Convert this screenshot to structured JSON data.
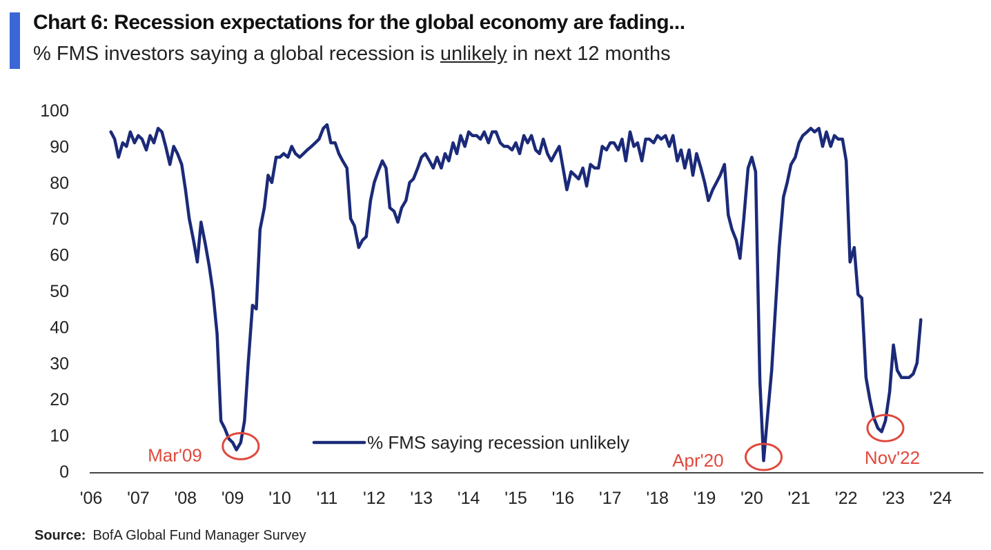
{
  "header": {
    "title": "Chart 6: Recession expectations for the global economy are fading...",
    "subtitle_pre": "% FMS investors saying a global recession is ",
    "subtitle_underlined": "unlikely",
    "subtitle_post": " in next 12 months"
  },
  "source": {
    "label": "Source:",
    "text": "BofA Global Fund Manager Survey"
  },
  "colors": {
    "line": "#1b2a78",
    "annotation": "#e0483c",
    "accent": "#3b67d6",
    "text": "#222222"
  },
  "chart_data": {
    "type": "line",
    "title": "Chart 6: Recession expectations for the global economy are fading...",
    "subtitle": "% FMS investors saying a global recession is unlikely in next 12 months",
    "xlabel": "",
    "ylabel": "",
    "xlim": [
      2006,
      2024.5
    ],
    "ylim": [
      0,
      100
    ],
    "y_ticks": [
      0,
      10,
      20,
      30,
      40,
      50,
      60,
      70,
      80,
      90,
      100
    ],
    "x_ticks": [
      {
        "x": 2006,
        "label": "'06"
      },
      {
        "x": 2007,
        "label": "'07"
      },
      {
        "x": 2008,
        "label": "'08"
      },
      {
        "x": 2009,
        "label": "'09"
      },
      {
        "x": 2010,
        "label": "'10"
      },
      {
        "x": 2011,
        "label": "'11"
      },
      {
        "x": 2012,
        "label": "'12"
      },
      {
        "x": 2013,
        "label": "'13"
      },
      {
        "x": 2014,
        "label": "'14"
      },
      {
        "x": 2015,
        "label": "'15"
      },
      {
        "x": 2016,
        "label": "'16"
      },
      {
        "x": 2017,
        "label": "'17"
      },
      {
        "x": 2018,
        "label": "'18"
      },
      {
        "x": 2019,
        "label": "'19"
      },
      {
        "x": 2020,
        "label": "'20"
      },
      {
        "x": 2021,
        "label": "'21"
      },
      {
        "x": 2022,
        "label": "'22"
      },
      {
        "x": 2023,
        "label": "'23"
      },
      {
        "x": 2024,
        "label": "'24"
      }
    ],
    "grid": false,
    "legend": {
      "position": "bottom-center",
      "label": "% FMS saying recession unlikely"
    },
    "series": [
      {
        "name": "% FMS saying recession unlikely",
        "points": [
          [
            2006.42,
            94
          ],
          [
            2006.5,
            92
          ],
          [
            2006.58,
            87
          ],
          [
            2006.67,
            91
          ],
          [
            2006.75,
            90
          ],
          [
            2006.83,
            94
          ],
          [
            2006.92,
            91
          ],
          [
            2007.0,
            93
          ],
          [
            2007.08,
            92
          ],
          [
            2007.17,
            89
          ],
          [
            2007.25,
            93
          ],
          [
            2007.33,
            91
          ],
          [
            2007.42,
            95
          ],
          [
            2007.5,
            94
          ],
          [
            2007.58,
            90
          ],
          [
            2007.67,
            85
          ],
          [
            2007.75,
            90
          ],
          [
            2007.83,
            88
          ],
          [
            2007.92,
            85
          ],
          [
            2008.0,
            78
          ],
          [
            2008.08,
            70
          ],
          [
            2008.17,
            64
          ],
          [
            2008.25,
            58
          ],
          [
            2008.33,
            69
          ],
          [
            2008.42,
            63
          ],
          [
            2008.5,
            57
          ],
          [
            2008.58,
            50
          ],
          [
            2008.67,
            38
          ],
          [
            2008.75,
            14
          ],
          [
            2008.83,
            12
          ],
          [
            2008.92,
            9
          ],
          [
            2009.0,
            8
          ],
          [
            2009.08,
            6
          ],
          [
            2009.17,
            8
          ],
          [
            2009.25,
            14
          ],
          [
            2009.33,
            30
          ],
          [
            2009.42,
            46
          ],
          [
            2009.5,
            45
          ],
          [
            2009.58,
            67
          ],
          [
            2009.67,
            73
          ],
          [
            2009.75,
            82
          ],
          [
            2009.83,
            80
          ],
          [
            2009.92,
            87
          ],
          [
            2010.0,
            87
          ],
          [
            2010.08,
            88
          ],
          [
            2010.17,
            87
          ],
          [
            2010.25,
            90
          ],
          [
            2010.33,
            88
          ],
          [
            2010.42,
            87
          ],
          [
            2010.5,
            88
          ],
          [
            2010.58,
            89
          ],
          [
            2010.67,
            90
          ],
          [
            2010.75,
            91
          ],
          [
            2010.83,
            92
          ],
          [
            2010.92,
            95
          ],
          [
            2011.0,
            96
          ],
          [
            2011.08,
            91
          ],
          [
            2011.17,
            91
          ],
          [
            2011.25,
            88
          ],
          [
            2011.33,
            86
          ],
          [
            2011.42,
            84
          ],
          [
            2011.5,
            70
          ],
          [
            2011.58,
            68
          ],
          [
            2011.67,
            62
          ],
          [
            2011.75,
            64
          ],
          [
            2011.83,
            65
          ],
          [
            2011.92,
            75
          ],
          [
            2012.0,
            80
          ],
          [
            2012.08,
            83
          ],
          [
            2012.17,
            86
          ],
          [
            2012.25,
            84
          ],
          [
            2012.33,
            73
          ],
          [
            2012.42,
            72
          ],
          [
            2012.5,
            69
          ],
          [
            2012.58,
            73
          ],
          [
            2012.67,
            75
          ],
          [
            2012.75,
            80
          ],
          [
            2012.83,
            81
          ],
          [
            2012.92,
            84
          ],
          [
            2013.0,
            87
          ],
          [
            2013.08,
            88
          ],
          [
            2013.17,
            86
          ],
          [
            2013.25,
            84
          ],
          [
            2013.33,
            87
          ],
          [
            2013.42,
            84
          ],
          [
            2013.5,
            88
          ],
          [
            2013.58,
            86
          ],
          [
            2013.67,
            91
          ],
          [
            2013.75,
            88
          ],
          [
            2013.83,
            93
          ],
          [
            2013.92,
            90
          ],
          [
            2014.0,
            94
          ],
          [
            2014.08,
            93
          ],
          [
            2014.17,
            93
          ],
          [
            2014.25,
            92
          ],
          [
            2014.33,
            94
          ],
          [
            2014.42,
            91
          ],
          [
            2014.5,
            94
          ],
          [
            2014.58,
            94
          ],
          [
            2014.67,
            91
          ],
          [
            2014.75,
            90
          ],
          [
            2014.83,
            90
          ],
          [
            2014.92,
            89
          ],
          [
            2015.0,
            91
          ],
          [
            2015.08,
            88
          ],
          [
            2015.17,
            93
          ],
          [
            2015.25,
            91
          ],
          [
            2015.33,
            93
          ],
          [
            2015.42,
            89
          ],
          [
            2015.5,
            88
          ],
          [
            2015.58,
            92
          ],
          [
            2015.67,
            88
          ],
          [
            2015.75,
            86
          ],
          [
            2015.83,
            88
          ],
          [
            2015.92,
            90
          ],
          [
            2016.0,
            84
          ],
          [
            2016.08,
            78
          ],
          [
            2016.17,
            83
          ],
          [
            2016.25,
            82
          ],
          [
            2016.33,
            81
          ],
          [
            2016.42,
            84
          ],
          [
            2016.5,
            79
          ],
          [
            2016.58,
            85
          ],
          [
            2016.67,
            84
          ],
          [
            2016.75,
            84
          ],
          [
            2016.83,
            90
          ],
          [
            2016.92,
            89
          ],
          [
            2017.0,
            91
          ],
          [
            2017.08,
            91
          ],
          [
            2017.17,
            89
          ],
          [
            2017.25,
            92
          ],
          [
            2017.33,
            86
          ],
          [
            2017.42,
            94
          ],
          [
            2017.5,
            90
          ],
          [
            2017.58,
            91
          ],
          [
            2017.67,
            86
          ],
          [
            2017.75,
            92
          ],
          [
            2017.83,
            92
          ],
          [
            2017.92,
            91
          ],
          [
            2018.0,
            93
          ],
          [
            2018.08,
            92
          ],
          [
            2018.17,
            93
          ],
          [
            2018.25,
            90
          ],
          [
            2018.33,
            93
          ],
          [
            2018.42,
            86
          ],
          [
            2018.5,
            89
          ],
          [
            2018.58,
            84
          ],
          [
            2018.67,
            89
          ],
          [
            2018.75,
            82
          ],
          [
            2018.83,
            88
          ],
          [
            2018.92,
            84
          ],
          [
            2019.0,
            80
          ],
          [
            2019.08,
            75
          ],
          [
            2019.17,
            78
          ],
          [
            2019.25,
            80
          ],
          [
            2019.33,
            82
          ],
          [
            2019.42,
            85
          ],
          [
            2019.5,
            71
          ],
          [
            2019.58,
            67
          ],
          [
            2019.67,
            64
          ],
          [
            2019.75,
            59
          ],
          [
            2019.83,
            70
          ],
          [
            2019.92,
            84
          ],
          [
            2020.0,
            87
          ],
          [
            2020.08,
            83
          ],
          [
            2020.17,
            25
          ],
          [
            2020.25,
            3
          ],
          [
            2020.33,
            15
          ],
          [
            2020.42,
            28
          ],
          [
            2020.5,
            45
          ],
          [
            2020.58,
            62
          ],
          [
            2020.67,
            76
          ],
          [
            2020.75,
            80
          ],
          [
            2020.83,
            85
          ],
          [
            2020.92,
            87
          ],
          [
            2021.0,
            91
          ],
          [
            2021.08,
            93
          ],
          [
            2021.17,
            94
          ],
          [
            2021.25,
            95
          ],
          [
            2021.33,
            94
          ],
          [
            2021.42,
            95
          ],
          [
            2021.5,
            90
          ],
          [
            2021.58,
            94
          ],
          [
            2021.67,
            90
          ],
          [
            2021.75,
            93
          ],
          [
            2021.83,
            92
          ],
          [
            2021.92,
            92
          ],
          [
            2022.0,
            86
          ],
          [
            2022.08,
            58
          ],
          [
            2022.17,
            62
          ],
          [
            2022.25,
            49
          ],
          [
            2022.33,
            48
          ],
          [
            2022.42,
            26
          ],
          [
            2022.5,
            20
          ],
          [
            2022.58,
            15
          ],
          [
            2022.67,
            12
          ],
          [
            2022.75,
            11
          ],
          [
            2022.83,
            14
          ],
          [
            2022.92,
            22
          ],
          [
            2023.0,
            35
          ],
          [
            2023.08,
            28
          ],
          [
            2023.17,
            26
          ],
          [
            2023.25,
            26
          ],
          [
            2023.33,
            26
          ],
          [
            2023.42,
            27
          ],
          [
            2023.5,
            30
          ],
          [
            2023.58,
            42
          ]
        ]
      }
    ],
    "annotations": [
      {
        "label": "Mar'09",
        "x": 2009.17,
        "y": 7
      },
      {
        "label": "Apr'20",
        "x": 2020.25,
        "y": 4
      },
      {
        "label": "Nov'22",
        "x": 2022.83,
        "y": 12
      }
    ]
  }
}
